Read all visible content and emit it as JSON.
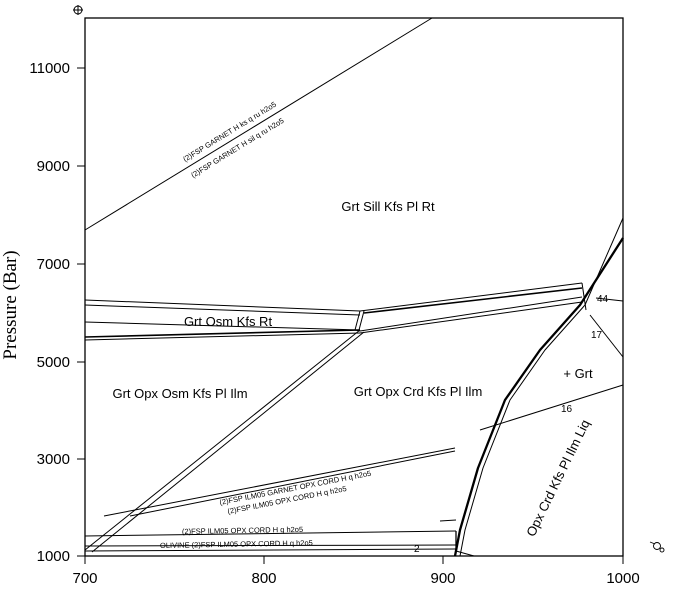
{
  "chart_data": {
    "type": "phase-diagram",
    "ylabel": "Pressure (Bar)",
    "xlim": [
      700,
      1000
    ],
    "ylim": [
      1000,
      12000
    ],
    "x_ticks": [
      "700",
      "800",
      "900",
      "1000"
    ],
    "y_ticks": [
      "1000",
      "3000",
      "5000",
      "7000",
      "9000",
      "11000"
    ],
    "fields": [
      "Grt Sill Kfs Pl Rt",
      "Grt Osm Kfs Rt",
      "Grt Opx Osm Kfs Pl Ilm",
      "Grt Opx Crd Kfs Pl Ilm",
      "+ Grt",
      "Opx Crd Kfs Pl Ilm Liq"
    ],
    "reaction_labels": [
      "(2)FSP GARNET H ks q ru h2o5",
      "(2)FSP GARNET H sil q ru h2o5",
      "(2)FSP ILM05 GARNET OPX CORD H q h2o5",
      "(2)FSP ILM05 OPX CORD H q h2o5",
      "(2)FSP ILM05 OPX CORD H q h2o5",
      "OLIVINE (2)FSP ILM05 OPX CORD H q h2o5"
    ],
    "contour_labels": [
      "44",
      "17",
      "16",
      "2"
    ]
  },
  "colors": {
    "line": "#000000",
    "background": "#ffffff"
  },
  "icons": [
    "corner-marker-icon",
    "side-marker-icon"
  ]
}
